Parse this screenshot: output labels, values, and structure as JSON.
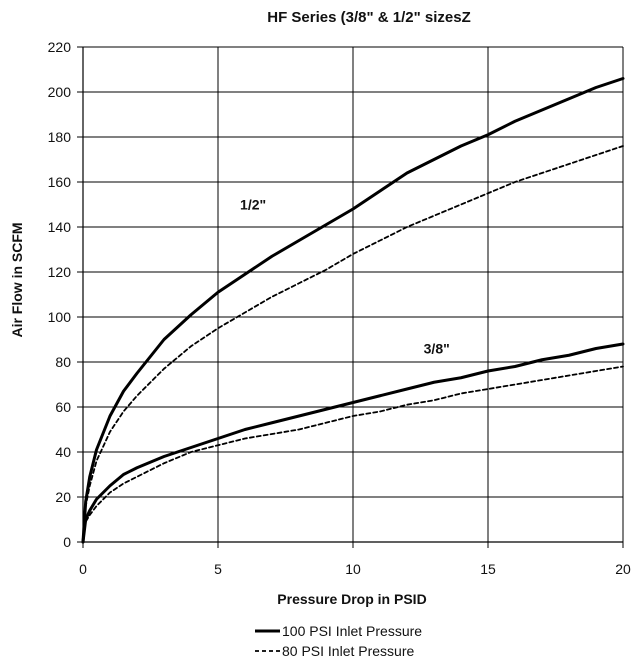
{
  "chart_data": {
    "type": "line",
    "title": "HF Series (3/8\" & 1/2\" sizesZ",
    "xlabel": "Pressure Drop in PSID",
    "ylabel": "Air Flow in SCFM",
    "xlim": [
      0,
      20
    ],
    "ylim": [
      0,
      220
    ],
    "xticks": [
      0,
      5,
      10,
      15,
      20
    ],
    "yticks": [
      0,
      20,
      40,
      60,
      80,
      100,
      120,
      140,
      160,
      180,
      200,
      220
    ],
    "grid": true,
    "legend_position": "bottom",
    "legend": [
      {
        "label": "100 PSI Inlet Pressure",
        "style": "solid"
      },
      {
        "label": "80 PSI Inlet Pressure",
        "style": "dashed"
      }
    ],
    "annotations": [
      {
        "text": "1/2\"",
        "x": 6.3,
        "y": 150
      },
      {
        "text": "3/8\"",
        "x": 13.1,
        "y": 86
      }
    ],
    "series": [
      {
        "size": "1/2\"",
        "pressure": "100 PSI Inlet Pressure",
        "style": "solid",
        "x": [
          0,
          0.1,
          0.25,
          0.5,
          1,
          1.5,
          2,
          3,
          4,
          5,
          6,
          7,
          8,
          9,
          10,
          11,
          12,
          13,
          14,
          15,
          16,
          17,
          18,
          19,
          20
        ],
        "y": [
          0,
          18,
          29,
          41,
          56,
          67,
          75,
          90,
          101,
          111,
          119,
          127,
          134,
          141,
          148,
          156,
          164,
          170,
          176,
          181,
          187,
          192,
          197,
          202,
          206
        ]
      },
      {
        "size": "1/2\"",
        "pressure": "80 PSI Inlet Pressure",
        "style": "dashed",
        "x": [
          0,
          0.1,
          0.25,
          0.5,
          1,
          1.5,
          2,
          3,
          4,
          5,
          6,
          7,
          8,
          9,
          10,
          11,
          12,
          13,
          14,
          15,
          16,
          17,
          18,
          19,
          20
        ],
        "y": [
          0,
          16,
          25,
          36,
          49,
          58,
          65,
          77,
          87,
          95,
          102,
          109,
          115,
          121,
          128,
          134,
          140,
          145,
          150,
          155,
          160,
          164,
          168,
          172,
          176
        ]
      },
      {
        "size": "3/8\"",
        "pressure": "100 PSI Inlet Pressure",
        "style": "solid",
        "x": [
          0,
          0.1,
          0.25,
          0.5,
          1,
          1.5,
          2,
          3,
          4,
          5,
          6,
          7,
          8,
          9,
          10,
          11,
          12,
          13,
          14,
          15,
          16,
          17,
          18,
          19,
          20
        ],
        "y": [
          0,
          10,
          14,
          19,
          25,
          30,
          33,
          38,
          42,
          46,
          50,
          53,
          56,
          59,
          62,
          65,
          68,
          71,
          73,
          76,
          78,
          81,
          83,
          86,
          88
        ]
      },
      {
        "size": "3/8\"",
        "pressure": "80 PSI Inlet Pressure",
        "style": "dashed",
        "x": [
          0,
          0.1,
          0.25,
          0.5,
          1,
          1.5,
          2,
          3,
          4,
          5,
          6,
          7,
          8,
          9,
          10,
          11,
          12,
          13,
          14,
          15,
          16,
          17,
          18,
          19,
          20
        ],
        "y": [
          0,
          9,
          12,
          16,
          22,
          26,
          29,
          35,
          40,
          43,
          46,
          48,
          50,
          53,
          56,
          58,
          61,
          63,
          66,
          68,
          70,
          72,
          74,
          76,
          78
        ]
      }
    ]
  }
}
